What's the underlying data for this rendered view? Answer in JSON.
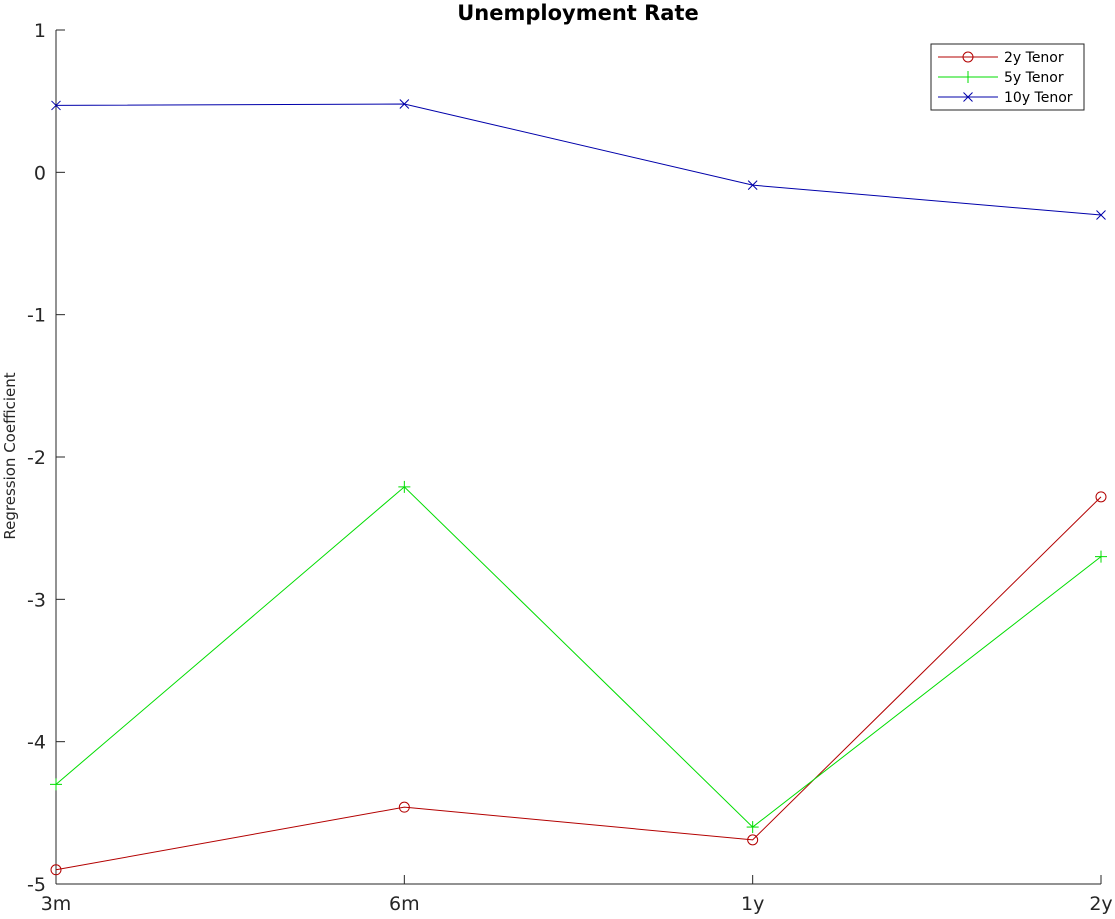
{
  "chart_data": {
    "type": "line",
    "title": "Unemployment Rate",
    "xlabel": "",
    "ylabel": "Regression Coefficient",
    "categories": [
      "3m",
      "6m",
      "1y",
      "2y"
    ],
    "ylim": [
      -5,
      1
    ],
    "yticks": [
      1,
      0,
      -1,
      -2,
      -3,
      -4,
      -5
    ],
    "ytick_labels": [
      "1",
      "0",
      "-1",
      "-2",
      "-3",
      "-4",
      "-5"
    ],
    "grid": false,
    "legend_position": "top-right",
    "series": [
      {
        "name": "2y Tenor",
        "values": [
          -4.9,
          -4.46,
          -4.69,
          -2.28
        ],
        "color": "#b30000",
        "marker": "circle"
      },
      {
        "name": "5y Tenor",
        "values": [
          -4.3,
          -2.21,
          -4.6,
          -2.7
        ],
        "color": "#00dd00",
        "marker": "plus"
      },
      {
        "name": "10y Tenor",
        "values": [
          0.47,
          0.48,
          -0.09,
          -0.3
        ],
        "color": "#0000aa",
        "marker": "cross"
      }
    ]
  }
}
